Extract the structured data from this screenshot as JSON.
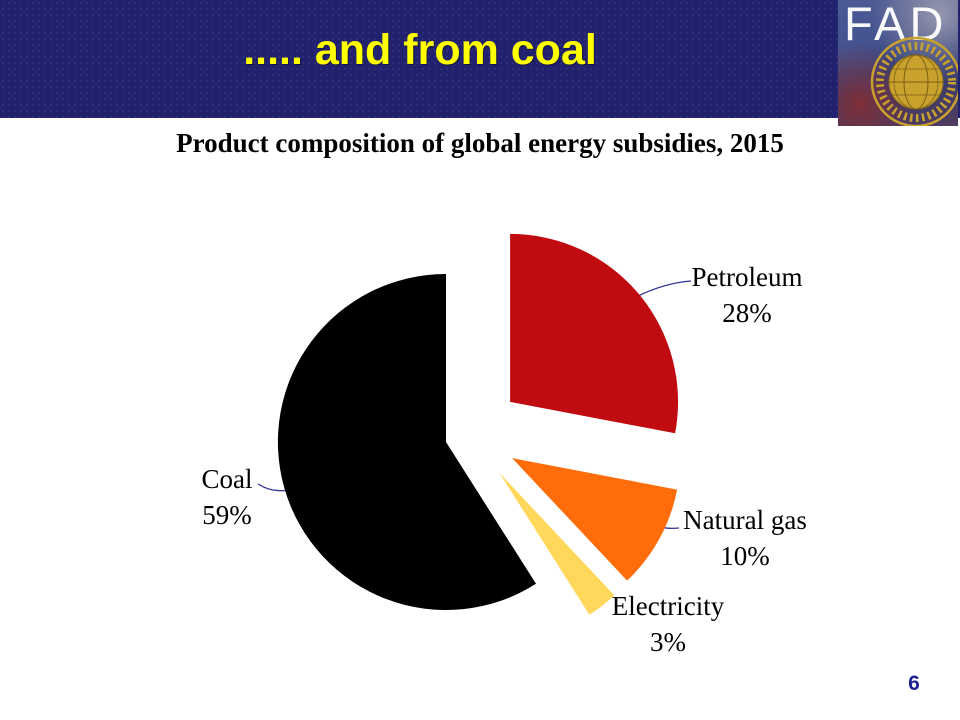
{
  "header": {
    "title": "..... and from coal",
    "title_color": "#FFFF00",
    "bar_color": "#21216E",
    "logo_text": "FAD"
  },
  "chart_data": {
    "type": "pie",
    "title": "Product composition of global energy subsidies, 2015",
    "units": "percent of total",
    "direction": "clockwise",
    "start_angle_deg": 0,
    "legend": "none",
    "labels_outside": true,
    "leader_line_color": "#333399",
    "slices": [
      {
        "label": "Petroleum",
        "value": 28,
        "pct_label": "28%",
        "color": "#C00C10",
        "explode": 52
      },
      {
        "label": "Natural gas",
        "value": 10,
        "pct_label": "10%",
        "color": "#FF6D0A",
        "explode": 48
      },
      {
        "label": "Electricity",
        "value": 3,
        "pct_label": "3%",
        "color": "#FFD75A",
        "explode": 48
      },
      {
        "label": "Coal",
        "value": 59,
        "pct_label": "59%",
        "color": "#000000",
        "explode": 25
      }
    ]
  },
  "footer": {
    "page_number": "6"
  }
}
